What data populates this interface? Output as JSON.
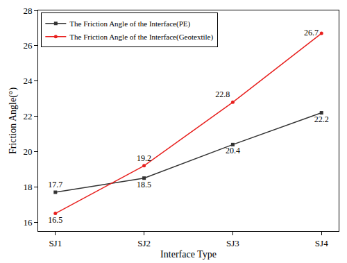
{
  "chart_data": {
    "type": "line",
    "x_label": "Interface Type",
    "y_label": "Friction Angle(°)",
    "categories": [
      "SJ1",
      "SJ2",
      "SJ3",
      "SJ4"
    ],
    "series": [
      {
        "name": "The Friction Angle of the Interface(PE)",
        "color": "#333333",
        "marker": "square",
        "values": [
          17.7,
          18.5,
          20.4,
          22.2
        ]
      },
      {
        "name": "The Friction Angle of the Interface(Geotextile)",
        "color": "#e8201e",
        "marker": "circle",
        "values": [
          16.5,
          19.2,
          22.8,
          26.7
        ]
      }
    ],
    "ylim": [
      15.5,
      28
    ],
    "yticks": [
      16,
      18,
      20,
      22,
      24,
      26,
      28
    ],
    "data_labels": true,
    "legend": "upper left",
    "grid": false
  }
}
